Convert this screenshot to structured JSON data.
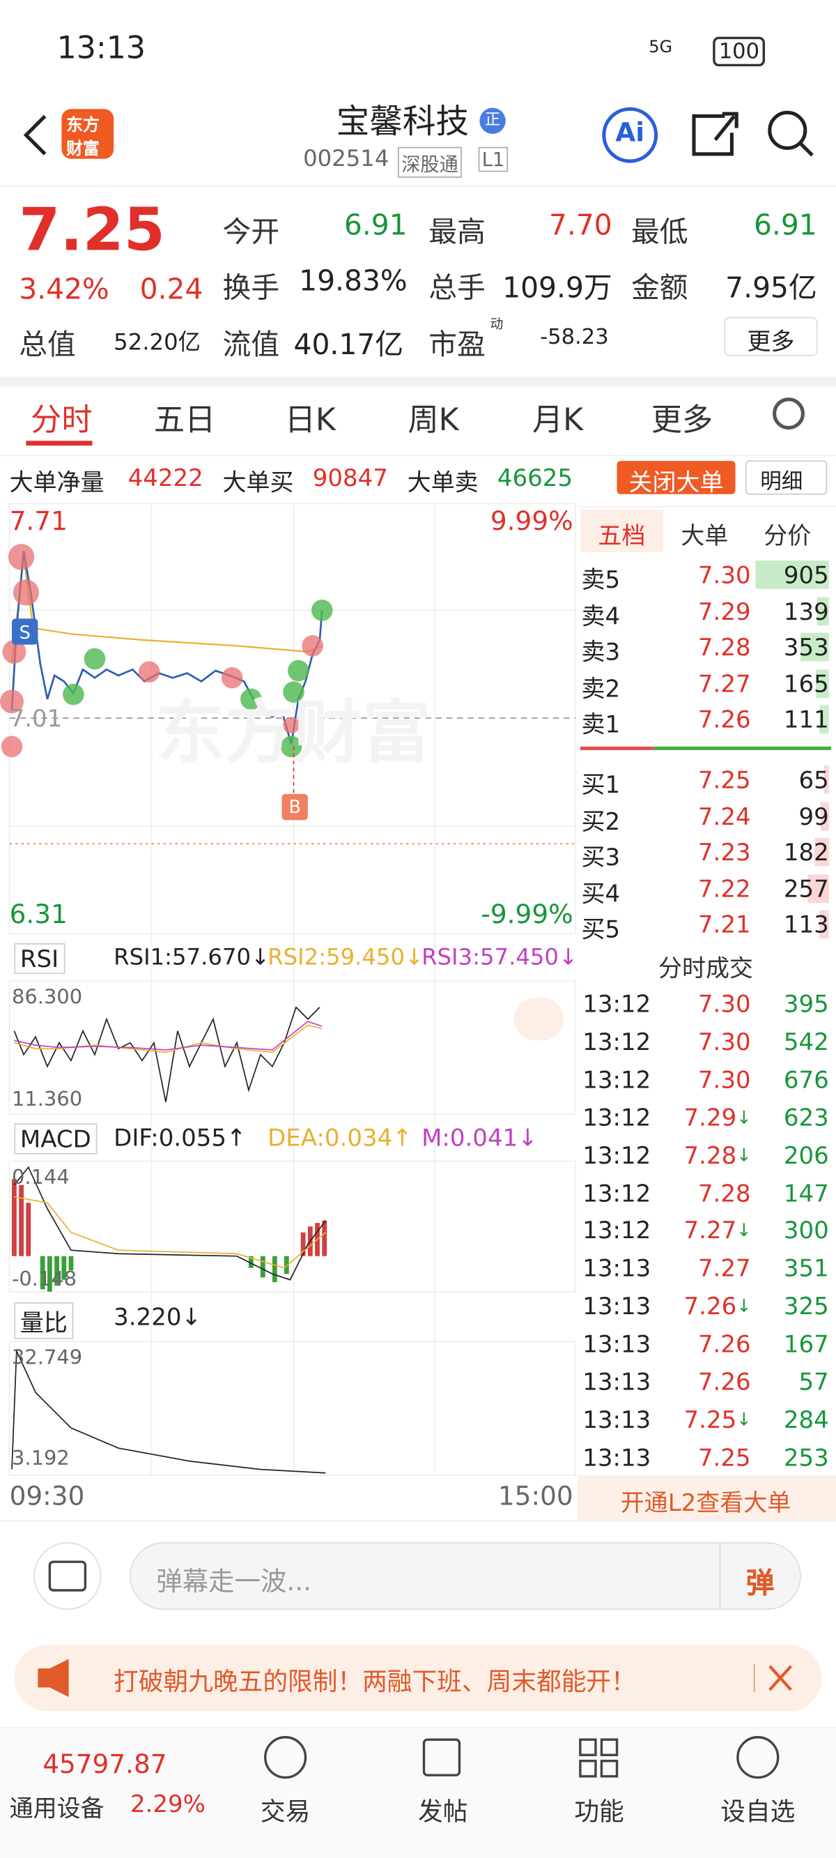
{
  "status": {
    "time": "13:13",
    "network": "5G",
    "battery": "100"
  },
  "header": {
    "logo": [
      "东方",
      "财富"
    ],
    "title": "宝馨科技",
    "badge": "正",
    "code": "002514",
    "market": "深股通",
    "level": "L1",
    "ai": "Ai"
  },
  "quote": {
    "price": "7.25",
    "change_pct": "3.42%",
    "change": "0.24",
    "fields": [
      {
        "label": "今开",
        "value": "6.91"
      },
      {
        "label": "最高",
        "value": "7.70"
      },
      {
        "label": "最低",
        "value": "6.91"
      },
      {
        "label": "换手",
        "value": "19.83%"
      },
      {
        "label": "总手",
        "value": "109.9万"
      },
      {
        "label": "金额",
        "value": "7.95亿"
      },
      {
        "label": "总值",
        "value": "52.20亿"
      },
      {
        "label": "流值",
        "value": "40.17亿"
      },
      {
        "label": "市盈",
        "sup": "动",
        "value": "-58.23"
      }
    ],
    "more": "更多"
  },
  "tabs": [
    "分时",
    "五日",
    "日K",
    "周K",
    "月K",
    "更多"
  ],
  "big_order": {
    "items": [
      {
        "label": "大单净量",
        "value": "44222"
      },
      {
        "label": "大单买",
        "value": "90847"
      },
      {
        "label": "大单卖",
        "value": "46625"
      }
    ],
    "close": "关闭大单",
    "detail": "明细"
  },
  "chart": {
    "high": "7.71",
    "high_pct": "9.99%",
    "prev_close": "7.01",
    "low": "6.31",
    "low_pct": "-9.99%",
    "buy": "B",
    "sell": "S",
    "watermark": "东方财富"
  },
  "rsi": {
    "name": "RSI",
    "rsi1": "RSI1:57.670↓",
    "rsi2": "RSI2:59.450↓",
    "rsi3": "RSI3:57.450↓",
    "max": "86.300",
    "min": "11.360"
  },
  "macd": {
    "name": "MACD",
    "dif": "DIF:0.055↑",
    "dea": "DEA:0.034↑",
    "m": "M:0.041↓",
    "max": "0.144",
    "min": "-0.148"
  },
  "volume_ratio": {
    "name": "量比",
    "value": "3.220↓",
    "max": "32.749",
    "min": "3.192"
  },
  "time_axis": [
    "09:30",
    "15:00"
  ],
  "book": {
    "tabs": [
      "五档",
      "大单",
      "分价"
    ],
    "asks": [
      {
        "label": "卖5",
        "price": "7.30",
        "volume": 905
      },
      {
        "label": "卖4",
        "price": "7.29",
        "volume": 139
      },
      {
        "label": "卖3",
        "price": "7.28",
        "volume": 353
      },
      {
        "label": "卖2",
        "price": "7.27",
        "volume": 165
      },
      {
        "label": "卖1",
        "price": "7.26",
        "volume": 111
      }
    ],
    "bids": [
      {
        "label": "买1",
        "price": "7.25",
        "volume": 65
      },
      {
        "label": "买2",
        "price": "7.24",
        "volume": 99
      },
      {
        "label": "买3",
        "price": "7.23",
        "volume": 182
      },
      {
        "label": "买4",
        "price": "7.22",
        "volume": 257
      },
      {
        "label": "买5",
        "price": "7.21",
        "volume": 113
      }
    ]
  },
  "trades": {
    "title": "分时成交",
    "rows": [
      {
        "time": "13:12",
        "price": "7.30",
        "volume": 395
      },
      {
        "time": "13:12",
        "price": "7.30",
        "volume": 542
      },
      {
        "time": "13:12",
        "price": "7.30",
        "volume": 676
      },
      {
        "time": "13:12",
        "price": "7.29",
        "arrow": "↓",
        "volume": 623
      },
      {
        "time": "13:12",
        "price": "7.28",
        "arrow": "↓",
        "volume": 206
      },
      {
        "time": "13:12",
        "price": "7.28",
        "volume": 147
      },
      {
        "time": "13:12",
        "price": "7.27",
        "arrow": "↓",
        "volume": 300
      },
      {
        "time": "13:13",
        "price": "7.27",
        "volume": 351
      },
      {
        "time": "13:13",
        "price": "7.26",
        "arrow": "↓",
        "volume": 325
      },
      {
        "time": "13:13",
        "price": "7.26",
        "volume": 167
      },
      {
        "time": "13:13",
        "price": "7.26",
        "volume": 57
      },
      {
        "time": "13:13",
        "price": "7.25",
        "arrow": "↓",
        "volume": 284
      },
      {
        "time": "13:13",
        "price": "7.25",
        "volume": 253
      }
    ]
  },
  "l2": "开通L2查看大单",
  "comment": {
    "placeholder": "弹幕走一波...",
    "button": "弹"
  },
  "ad": "打破朝九晚五的限制！两融下班、周末都能开！",
  "nav": {
    "index": "45797.87",
    "sector": "通用设备",
    "sector_pct": "2.29%",
    "items": [
      "交易",
      "发帖",
      "功能",
      "设自选"
    ]
  }
}
